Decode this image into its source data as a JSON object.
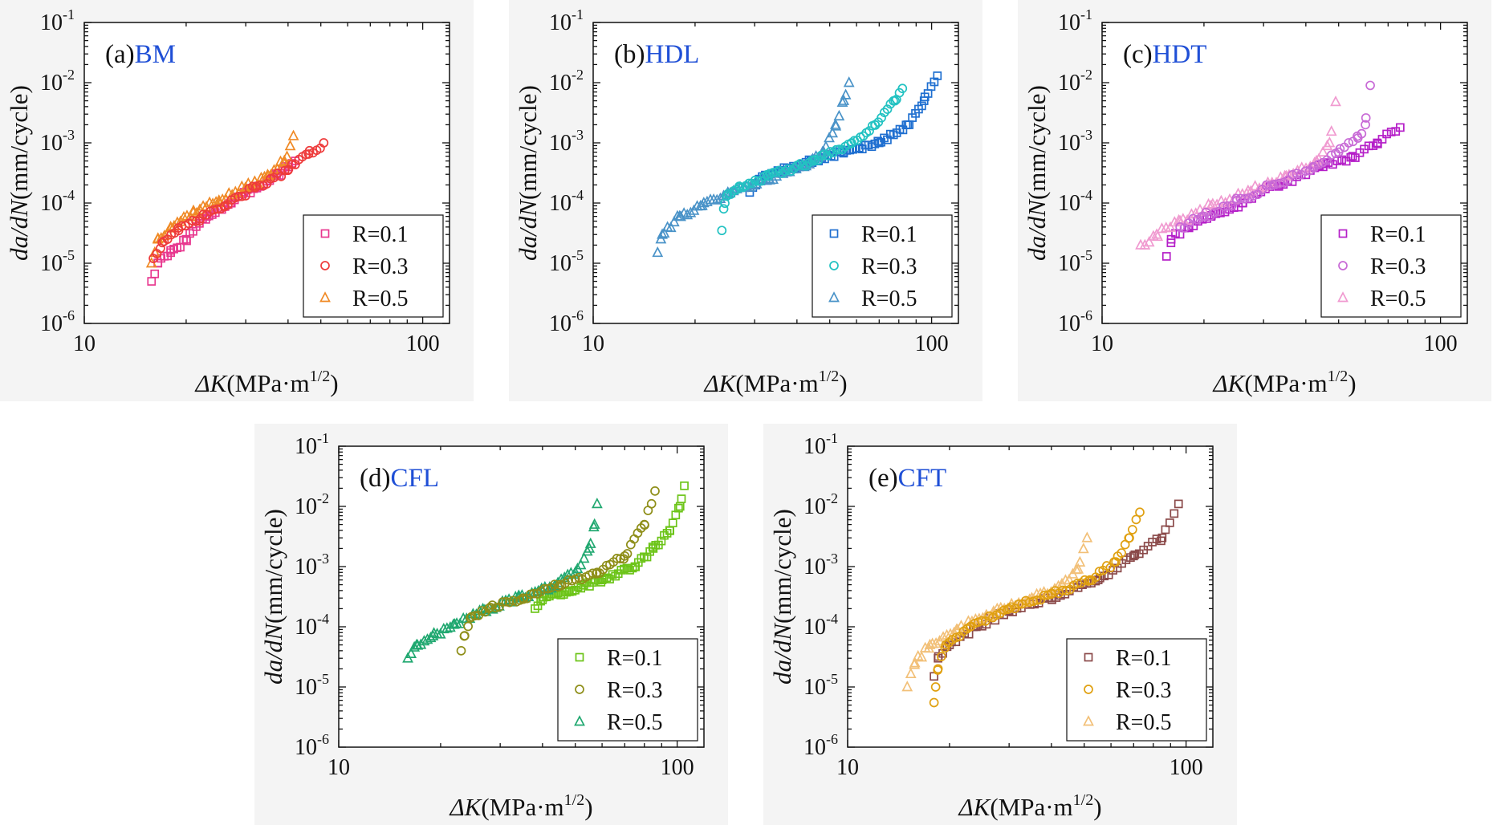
{
  "colors": {
    "panel_name": "#1f4fd6",
    "panel_bg": "#f4f4f4",
    "frame": "#111111"
  },
  "chart_data": [
    {
      "type": "scatter",
      "panel_label": "(a)",
      "panel_name": "BM",
      "xscale": "log",
      "yscale": "log",
      "xlim": [
        10,
        120
      ],
      "ylim": [
        1e-06,
        0.1
      ],
      "xticks": [
        "10",
        "100"
      ],
      "yticks": [
        {
          "base": "10",
          "exp": "-6"
        },
        {
          "base": "10",
          "exp": "-5"
        },
        {
          "base": "10",
          "exp": "-4"
        },
        {
          "base": "10",
          "exp": "-3"
        },
        {
          "base": "10",
          "exp": "-2"
        },
        {
          "base": "10",
          "exp": "-1"
        }
      ],
      "xlabel": {
        "symbol": "ΔK",
        "unit": "(MPa·m",
        "exp": "1/2",
        "close": ")"
      },
      "ylabel": {
        "symbol": "da/dN",
        "unit": "(mm/cycle)"
      },
      "legend_position": "bottom-right",
      "series": [
        {
          "name": "R=0.1",
          "marker": "square",
          "color": "#e8388f",
          "anchors": [
            [
              15.8,
              5e-06
            ],
            [
              16.5,
              1e-05
            ],
            [
              18,
              1.5e-05
            ],
            [
              20,
              2.5e-05
            ],
            [
              23,
              6e-05
            ],
            [
              27,
              0.0001
            ],
            [
              32,
              0.00018
            ],
            [
              37,
              0.0003
            ],
            [
              42,
              0.0005
            ]
          ],
          "count": 45,
          "noise": 0.05
        },
        {
          "name": "R=0.3",
          "marker": "circle",
          "color": "#ee3b3b",
          "anchors": [
            [
              16,
              1.2e-05
            ],
            [
              17,
              2.2e-05
            ],
            [
              19,
              3.5e-05
            ],
            [
              22,
              5.5e-05
            ],
            [
              26,
              9e-05
            ],
            [
              32,
              0.00018
            ],
            [
              40,
              0.00035
            ],
            [
              46,
              0.00065
            ],
            [
              51,
              0.001
            ]
          ],
          "count": 48,
          "noise": 0.05
        },
        {
          "name": "R=0.5",
          "marker": "triangle",
          "color": "#f08a26",
          "anchors": [
            [
              15.8,
              1e-05
            ],
            [
              16.5,
              2.5e-05
            ],
            [
              18,
              4e-05
            ],
            [
              21,
              7e-05
            ],
            [
              25,
              0.00011
            ],
            [
              30,
              0.00018
            ],
            [
              35,
              0.00028
            ],
            [
              39,
              0.0005
            ],
            [
              41.5,
              0.0013
            ]
          ],
          "count": 44,
          "noise": 0.05
        }
      ]
    },
    {
      "type": "scatter",
      "panel_label": "(b)",
      "panel_name": "HDL",
      "xscale": "log",
      "yscale": "log",
      "xlim": [
        10,
        120
      ],
      "ylim": [
        1e-06,
        0.1
      ],
      "xticks": [
        "10",
        "100"
      ],
      "yticks": [
        {
          "base": "10",
          "exp": "-6"
        },
        {
          "base": "10",
          "exp": "-5"
        },
        {
          "base": "10",
          "exp": "-4"
        },
        {
          "base": "10",
          "exp": "-3"
        },
        {
          "base": "10",
          "exp": "-2"
        },
        {
          "base": "10",
          "exp": "-1"
        }
      ],
      "xlabel": {
        "symbol": "ΔK",
        "unit": "(MPa·m",
        "exp": "1/2",
        "close": ")"
      },
      "ylabel": {
        "symbol": "da/dN",
        "unit": "(mm/cycle)"
      },
      "legend_position": "bottom-right",
      "series": [
        {
          "name": "R=0.1",
          "marker": "square",
          "color": "#1f6fd0",
          "anchors": [
            [
              29,
              0.00015
            ],
            [
              31,
              0.00025
            ],
            [
              36,
              0.00035
            ],
            [
              44,
              0.0005
            ],
            [
              55,
              0.0007
            ],
            [
              70,
              0.001
            ],
            [
              85,
              0.002
            ],
            [
              95,
              0.005
            ],
            [
              104,
              0.013
            ]
          ],
          "count": 60,
          "noise": 0.04
        },
        {
          "name": "R=0.3",
          "marker": "circle",
          "color": "#22c2c2",
          "anchors": [
            [
              24,
              3.5e-05
            ],
            [
              24.3,
              8e-05
            ],
            [
              24.8,
              0.00013
            ],
            [
              27,
              0.00019
            ],
            [
              33,
              0.00028
            ],
            [
              45,
              0.0005
            ],
            [
              58,
              0.001
            ],
            [
              68,
              0.002
            ],
            [
              78,
              0.005
            ],
            [
              82,
              0.008
            ]
          ],
          "count": 60,
          "noise": 0.04
        },
        {
          "name": "R=0.5",
          "marker": "triangle",
          "color": "#4a93c8",
          "anchors": [
            [
              15.5,
              1.5e-05
            ],
            [
              16,
              3e-05
            ],
            [
              18,
              6e-05
            ],
            [
              21,
              9e-05
            ],
            [
              25,
              0.00015
            ],
            [
              33,
              0.00025
            ],
            [
              42,
              0.0004
            ],
            [
              48,
              0.0007
            ],
            [
              52,
              0.002
            ],
            [
              55,
              0.005
            ],
            [
              57,
              0.01
            ]
          ],
          "count": 58,
          "noise": 0.04
        }
      ]
    },
    {
      "type": "scatter",
      "panel_label": "(c)",
      "panel_name": "HDT",
      "xscale": "log",
      "yscale": "log",
      "xlim": [
        10,
        120
      ],
      "ylim": [
        1e-06,
        0.1
      ],
      "xticks": [
        "10",
        "100"
      ],
      "yticks": [
        {
          "base": "10",
          "exp": "-6"
        },
        {
          "base": "10",
          "exp": "-5"
        },
        {
          "base": "10",
          "exp": "-4"
        },
        {
          "base": "10",
          "exp": "-3"
        },
        {
          "base": "10",
          "exp": "-2"
        },
        {
          "base": "10",
          "exp": "-1"
        }
      ],
      "xlabel": {
        "symbol": "ΔK",
        "unit": "(MPa·m",
        "exp": "1/2",
        "close": ")"
      },
      "ylabel": {
        "symbol": "da/dN",
        "unit": "(mm/cycle)"
      },
      "legend_position": "bottom-right",
      "series": [
        {
          "name": "R=0.1",
          "marker": "square",
          "color": "#b51fc8",
          "anchors": [
            [
              15.5,
              1.3e-05
            ],
            [
              16,
              2.5e-05
            ],
            [
              18,
              4e-05
            ],
            [
              21,
              6e-05
            ],
            [
              26,
              0.0001
            ],
            [
              33,
              0.0002
            ],
            [
              45,
              0.0004
            ],
            [
              55,
              0.0006
            ],
            [
              65,
              0.001
            ],
            [
              76,
              0.0018
            ]
          ],
          "count": 52,
          "noise": 0.05
        },
        {
          "name": "R=0.3",
          "marker": "circle",
          "color": "#c86ad6",
          "anchors": [
            [
              17,
              4e-05
            ],
            [
              20,
              6e-05
            ],
            [
              25,
              0.00011
            ],
            [
              32,
              0.0002
            ],
            [
              42,
              0.0004
            ],
            [
              50,
              0.0007
            ],
            [
              57,
              0.0012
            ],
            [
              60,
              0.002
            ],
            [
              62,
              0.009
            ]
          ],
          "count": 44,
          "noise": 0.05
        },
        {
          "name": "R=0.5",
          "marker": "triangle",
          "color": "#f09ad0",
          "anchors": [
            [
              13,
              2e-05
            ],
            [
              14.5,
              3e-05
            ],
            [
              17,
              5e-05
            ],
            [
              21,
              9e-05
            ],
            [
              27,
              0.00016
            ],
            [
              35,
              0.00028
            ],
            [
              43,
              0.0005
            ],
            [
              47,
              0.001
            ],
            [
              49,
              0.0048
            ]
          ],
          "count": 46,
          "noise": 0.05
        }
      ]
    },
    {
      "type": "scatter",
      "panel_label": "(d)",
      "panel_name": "CFL",
      "xscale": "log",
      "yscale": "log",
      "xlim": [
        10,
        120
      ],
      "ylim": [
        1e-06,
        0.1
      ],
      "xticks": [
        "10",
        "100"
      ],
      "yticks": [
        {
          "base": "10",
          "exp": "-6"
        },
        {
          "base": "10",
          "exp": "-5"
        },
        {
          "base": "10",
          "exp": "-4"
        },
        {
          "base": "10",
          "exp": "-3"
        },
        {
          "base": "10",
          "exp": "-2"
        },
        {
          "base": "10",
          "exp": "-1"
        }
      ],
      "xlabel": {
        "symbol": "ΔK",
        "unit": "(MPa·m",
        "exp": "1/2",
        "close": ")"
      },
      "ylabel": {
        "symbol": "da/dN",
        "unit": "(mm/cycle)"
      },
      "legend_position": "bottom-right",
      "series": [
        {
          "name": "R=0.1",
          "marker": "square",
          "color": "#6cc418",
          "anchors": [
            [
              38,
              0.0002
            ],
            [
              40,
              0.00028
            ],
            [
              48,
              0.0004
            ],
            [
              60,
              0.0006
            ],
            [
              75,
              0.001
            ],
            [
              85,
              0.002
            ],
            [
              95,
              0.004
            ],
            [
              102,
              0.01
            ],
            [
              105,
              0.022
            ]
          ],
          "count": 52,
          "noise": 0.04
        },
        {
          "name": "R=0.3",
          "marker": "circle",
          "color": "#8e8e18",
          "anchors": [
            [
              23,
              4e-05
            ],
            [
              23.5,
              7e-05
            ],
            [
              24.5,
              0.00014
            ],
            [
              28,
              0.00021
            ],
            [
              35,
              0.0003
            ],
            [
              45,
              0.0005
            ],
            [
              58,
              0.0008
            ],
            [
              70,
              0.0015
            ],
            [
              80,
              0.005
            ],
            [
              86,
              0.018
            ]
          ],
          "count": 56,
          "noise": 0.04
        },
        {
          "name": "R=0.5",
          "marker": "triangle",
          "color": "#20a870",
          "anchors": [
            [
              16,
              3e-05
            ],
            [
              17,
              5e-05
            ],
            [
              19,
              7e-05
            ],
            [
              22,
              0.00011
            ],
            [
              27,
              0.00019
            ],
            [
              34,
              0.0003
            ],
            [
              42,
              0.00045
            ],
            [
              50,
              0.0008
            ],
            [
              55,
              0.002
            ],
            [
              57,
              0.005
            ],
            [
              58,
              0.011
            ]
          ],
          "count": 58,
          "noise": 0.04
        }
      ]
    },
    {
      "type": "scatter",
      "panel_label": "(e)",
      "panel_name": "CFT",
      "xscale": "log",
      "yscale": "log",
      "xlim": [
        10,
        120
      ],
      "ylim": [
        1e-06,
        0.1
      ],
      "xticks": [
        "10",
        "100"
      ],
      "yticks": [
        {
          "base": "10",
          "exp": "-6"
        },
        {
          "base": "10",
          "exp": "-5"
        },
        {
          "base": "10",
          "exp": "-4"
        },
        {
          "base": "10",
          "exp": "-3"
        },
        {
          "base": "10",
          "exp": "-2"
        },
        {
          "base": "10",
          "exp": "-1"
        }
      ],
      "xlabel": {
        "symbol": "ΔK",
        "unit": "(MPa·m",
        "exp": "1/2",
        "close": ")"
      },
      "ylabel": {
        "symbol": "da/dN",
        "unit": "(mm/cycle)"
      },
      "legend_position": "bottom-right",
      "series": [
        {
          "name": "R=0.1",
          "marker": "square",
          "color": "#8b4a4a",
          "anchors": [
            [
              18,
              1.5e-05
            ],
            [
              18.5,
              3e-05
            ],
            [
              20,
              5e-05
            ],
            [
              24,
              0.0001
            ],
            [
              30,
              0.00018
            ],
            [
              40,
              0.0003
            ],
            [
              55,
              0.0006
            ],
            [
              70,
              0.0015
            ],
            [
              85,
              0.003
            ],
            [
              95,
              0.011
            ]
          ],
          "count": 56,
          "noise": 0.04
        },
        {
          "name": "R=0.3",
          "marker": "circle",
          "color": "#e0a010",
          "anchors": [
            [
              18,
              5.5e-06
            ],
            [
              18.2,
              1e-05
            ],
            [
              18.5,
              2e-05
            ],
            [
              19.5,
              5e-05
            ],
            [
              23,
              0.0001
            ],
            [
              30,
              0.0002
            ],
            [
              40,
              0.00035
            ],
            [
              52,
              0.0006
            ],
            [
              62,
              0.0012
            ],
            [
              68,
              0.003
            ],
            [
              73,
              0.008
            ]
          ],
          "count": 56,
          "noise": 0.04
        },
        {
          "name": "R=0.5",
          "marker": "triangle",
          "color": "#f2c078",
          "anchors": [
            [
              15,
              1e-05
            ],
            [
              15.8,
              2.5e-05
            ],
            [
              17.5,
              5e-05
            ],
            [
              21,
              9e-05
            ],
            [
              27,
              0.00017
            ],
            [
              35,
              0.0003
            ],
            [
              43,
              0.0005
            ],
            [
              48,
              0.0009
            ],
            [
              51,
              0.003
            ]
          ],
          "count": 50,
          "noise": 0.05
        }
      ]
    }
  ]
}
